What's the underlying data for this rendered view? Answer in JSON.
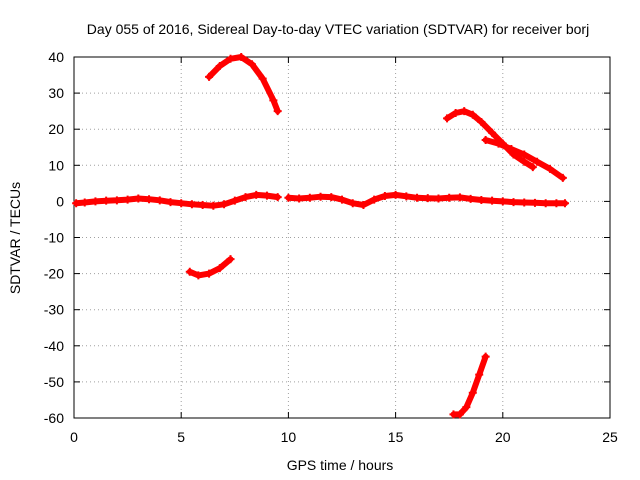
{
  "chart_data": {
    "type": "line",
    "title": "Day 055 of 2016, Sidereal Day-to-day VTEC variation (SDTVAR) for receiver borj",
    "xlabel": "GPS time / hours",
    "ylabel": "SDTVAR / TECUs",
    "xlim": [
      0,
      25
    ],
    "ylim": [
      -60,
      40
    ],
    "xticks": [
      0,
      5,
      10,
      15,
      20,
      25
    ],
    "yticks": [
      40,
      30,
      20,
      10,
      0,
      -10,
      -20,
      -30,
      -40,
      -50,
      -60
    ],
    "grid": true,
    "legend": "none",
    "series_color": "#ff0000",
    "series": [
      {
        "name": "arc-near-zero-1",
        "x": [
          0.1,
          0.5,
          1.0,
          1.5,
          2.0,
          2.5,
          3.0,
          3.5,
          4.0,
          4.5,
          5.0,
          5.5,
          6.0,
          6.5,
          7.0,
          7.5,
          8.0,
          8.5,
          9.0,
          9.5
        ],
        "y": [
          -0.5,
          -0.3,
          0.0,
          0.2,
          0.3,
          0.5,
          0.8,
          0.6,
          0.3,
          -0.2,
          -0.5,
          -0.8,
          -1.0,
          -1.2,
          -0.8,
          0.2,
          1.2,
          1.8,
          1.6,
          1.2
        ]
      },
      {
        "name": "arc-near-zero-2",
        "x": [
          10.0,
          10.5,
          11.0,
          11.5,
          12.0,
          12.5,
          13.0,
          13.5,
          14.0,
          14.5,
          15.0,
          15.5,
          16.0,
          16.5,
          17.0,
          17.5,
          18.0,
          18.5,
          19.0,
          19.5,
          20.0,
          20.5,
          21.0,
          21.5,
          22.0,
          22.5,
          22.9
        ],
        "y": [
          1.0,
          0.8,
          1.0,
          1.3,
          1.2,
          0.5,
          -0.5,
          -1.0,
          0.5,
          1.5,
          1.8,
          1.4,
          1.0,
          0.9,
          0.8,
          1.0,
          1.1,
          0.7,
          0.4,
          0.2,
          0.0,
          -0.2,
          -0.3,
          -0.4,
          -0.5,
          -0.5,
          -0.5
        ]
      },
      {
        "name": "arc-rising-peak",
        "x": [
          6.3,
          6.8,
          7.3,
          7.8,
          8.3,
          8.8,
          9.3,
          9.5
        ],
        "y": [
          34.5,
          37.5,
          39.5,
          40.0,
          38.0,
          34.0,
          28.0,
          25.0
        ]
      },
      {
        "name": "arc-low-dip",
        "x": [
          5.4,
          5.8,
          6.3,
          6.8,
          7.3
        ],
        "y": [
          -19.5,
          -20.5,
          -20.0,
          -18.5,
          -16.0
        ]
      },
      {
        "name": "arc-late-peak",
        "x": [
          17.4,
          17.8,
          18.2,
          18.6,
          19.0,
          19.5,
          20.0,
          20.5,
          21.0,
          21.4
        ],
        "y": [
          23.0,
          24.5,
          25.0,
          24.0,
          22.0,
          19.0,
          16.0,
          13.0,
          11.0,
          9.5
        ]
      },
      {
        "name": "arc-late-descent",
        "x": [
          19.2,
          19.8,
          20.4,
          21.0,
          21.6,
          22.2,
          22.8
        ],
        "y": [
          17.0,
          16.0,
          14.5,
          13.0,
          11.0,
          9.0,
          6.5
        ]
      },
      {
        "name": "arc-bottom-rise",
        "x": [
          17.7,
          18.0,
          18.3,
          18.6,
          18.9,
          19.2
        ],
        "y": [
          -59.0,
          -59.0,
          -57.0,
          -53.0,
          -48.0,
          -43.0
        ]
      }
    ]
  }
}
